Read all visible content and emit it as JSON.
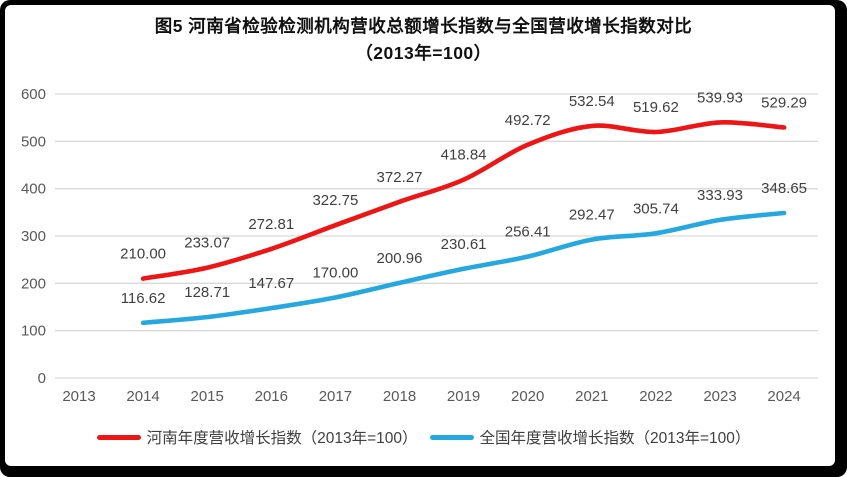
{
  "figure": {
    "title_line1": "图5  河南省检验检测机构营收总额增长指数与全国营收增长指数对比",
    "title_line2": "（2013年=100）"
  },
  "chart_data": {
    "type": "line",
    "title": "图5 河南省检验检测机构营收总额增长指数与全国营收增长指数对比（2013年=100）",
    "categories": [
      "2013",
      "2014",
      "2015",
      "2016",
      "2017",
      "2018",
      "2019",
      "2020",
      "2021",
      "2022",
      "2023",
      "2024"
    ],
    "series": [
      {
        "name": "河南年度营收增长指数（2013年=100）",
        "color": "#ee1515",
        "values": [
          null,
          210.0,
          233.07,
          272.81,
          322.75,
          372.27,
          418.84,
          492.72,
          532.54,
          519.62,
          539.93,
          529.29
        ]
      },
      {
        "name": "全国年度营收增长指数（2013年=100）",
        "color": "#25a8e0",
        "values": [
          null,
          116.62,
          128.71,
          147.67,
          170.0,
          200.96,
          230.61,
          256.41,
          292.47,
          305.74,
          333.93,
          348.65
        ]
      }
    ],
    "xlabel": "",
    "ylabel": "",
    "ylim": [
      0,
      600
    ],
    "y_ticks": [
      0,
      100,
      200,
      300,
      400,
      500,
      600
    ],
    "grid": "horizontal",
    "legend_position": "bottom",
    "data_labels": true,
    "data_label_decimals": 2,
    "smoothed": true
  },
  "style": {
    "grid_color": "#d9d9d9",
    "axis_text_color": "#595959",
    "data_label_color": "#404040",
    "title_color": "#111111",
    "frame_color": "#000000",
    "background": "#ffffff"
  }
}
